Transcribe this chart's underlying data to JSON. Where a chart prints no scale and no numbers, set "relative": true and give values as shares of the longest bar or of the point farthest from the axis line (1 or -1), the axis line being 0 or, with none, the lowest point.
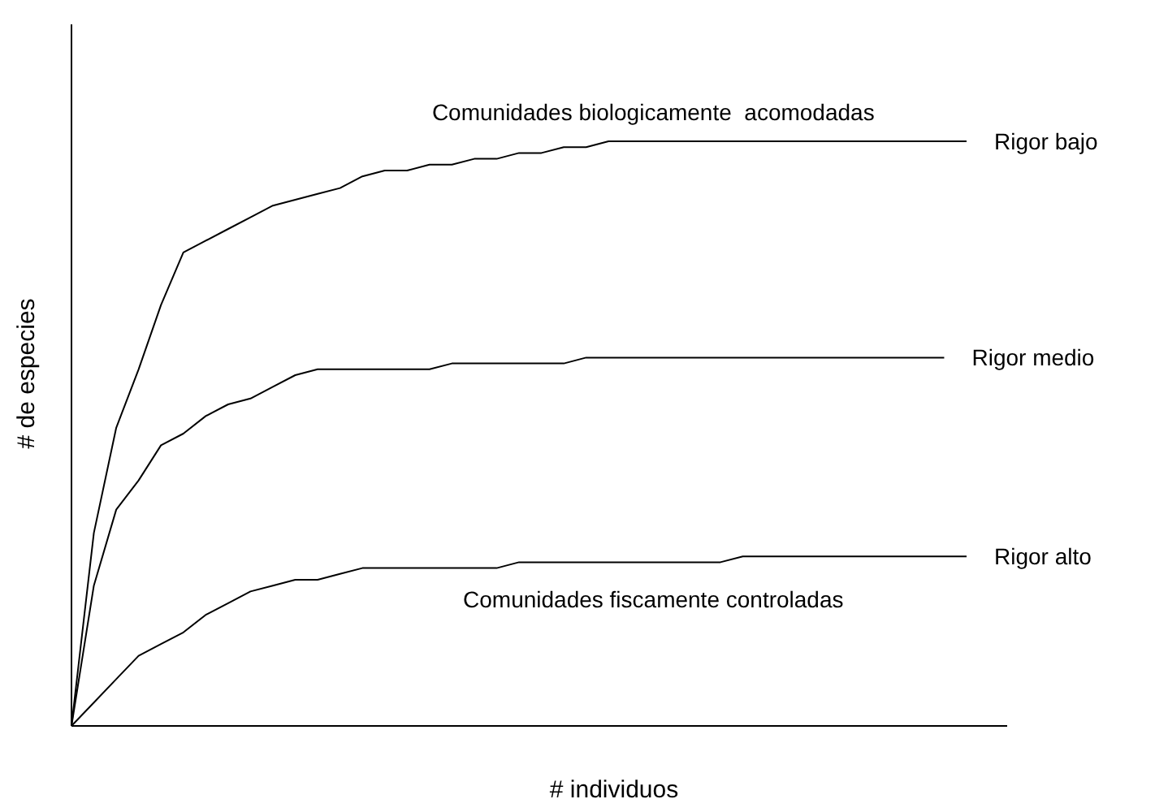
{
  "chart_data": {
    "type": "line",
    "relative": true,
    "xlabel": "# individuos",
    "ylabel": "# de especies",
    "legend": false,
    "marker": "none",
    "line_style": "solid",
    "annotations": [
      "Comunidades biologicamente  acomodadas",
      "Comunidades fiscamente controladas"
    ],
    "categories": [
      null,
      null,
      null,
      null,
      null,
      null,
      null,
      null,
      null,
      null,
      null,
      null,
      null,
      null,
      null,
      null,
      null,
      null,
      null,
      null,
      null,
      null,
      null,
      null,
      null,
      null,
      null,
      null,
      null,
      null,
      null,
      null,
      null,
      null,
      null,
      null,
      null,
      null,
      null,
      null,
      null
    ],
    "series": [
      {
        "name": "Rigor bajo",
        "color": "#000000",
        "values": [
          0,
          0.33,
          0.51,
          0.61,
          0.72,
          0.81,
          0.83,
          0.85,
          0.87,
          0.89,
          0.9,
          0.91,
          0.92,
          0.94,
          0.95,
          0.95,
          0.96,
          0.96,
          0.97,
          0.97,
          0.98,
          0.98,
          0.99,
          0.99,
          1,
          1,
          1,
          1,
          1,
          1,
          1,
          1,
          1,
          1,
          1,
          1,
          1,
          1,
          1,
          1,
          1
        ]
      },
      {
        "name": "Rigor medio",
        "color": "#000000",
        "values": [
          0,
          0.24,
          0.37,
          0.42,
          0.48,
          0.5,
          0.53,
          0.55,
          0.56,
          0.58,
          0.6,
          0.61,
          0.61,
          0.61,
          0.61,
          0.61,
          0.61,
          0.62,
          0.62,
          0.62,
          0.62,
          0.62,
          0.62,
          0.63,
          0.63,
          0.63,
          0.63,
          0.63,
          0.63,
          0.63,
          0.63,
          0.63,
          0.63,
          0.63,
          0.63,
          0.63,
          0.63,
          0.63,
          0.63,
          0.63,
          null
        ]
      },
      {
        "name": "Rigor alto",
        "color": "#000000",
        "values": [
          0,
          0.04,
          0.08,
          0.12,
          0.14,
          0.16,
          0.19,
          0.21,
          0.23,
          0.24,
          0.25,
          0.25,
          0.26,
          0.27,
          0.27,
          0.27,
          0.27,
          0.27,
          0.27,
          0.27,
          0.28,
          0.28,
          0.28,
          0.28,
          0.28,
          0.28,
          0.28,
          0.28,
          0.28,
          0.28,
          0.29,
          0.29,
          0.29,
          0.29,
          0.29,
          0.29,
          0.29,
          0.29,
          0.29,
          0.29,
          0.29
        ]
      }
    ]
  }
}
